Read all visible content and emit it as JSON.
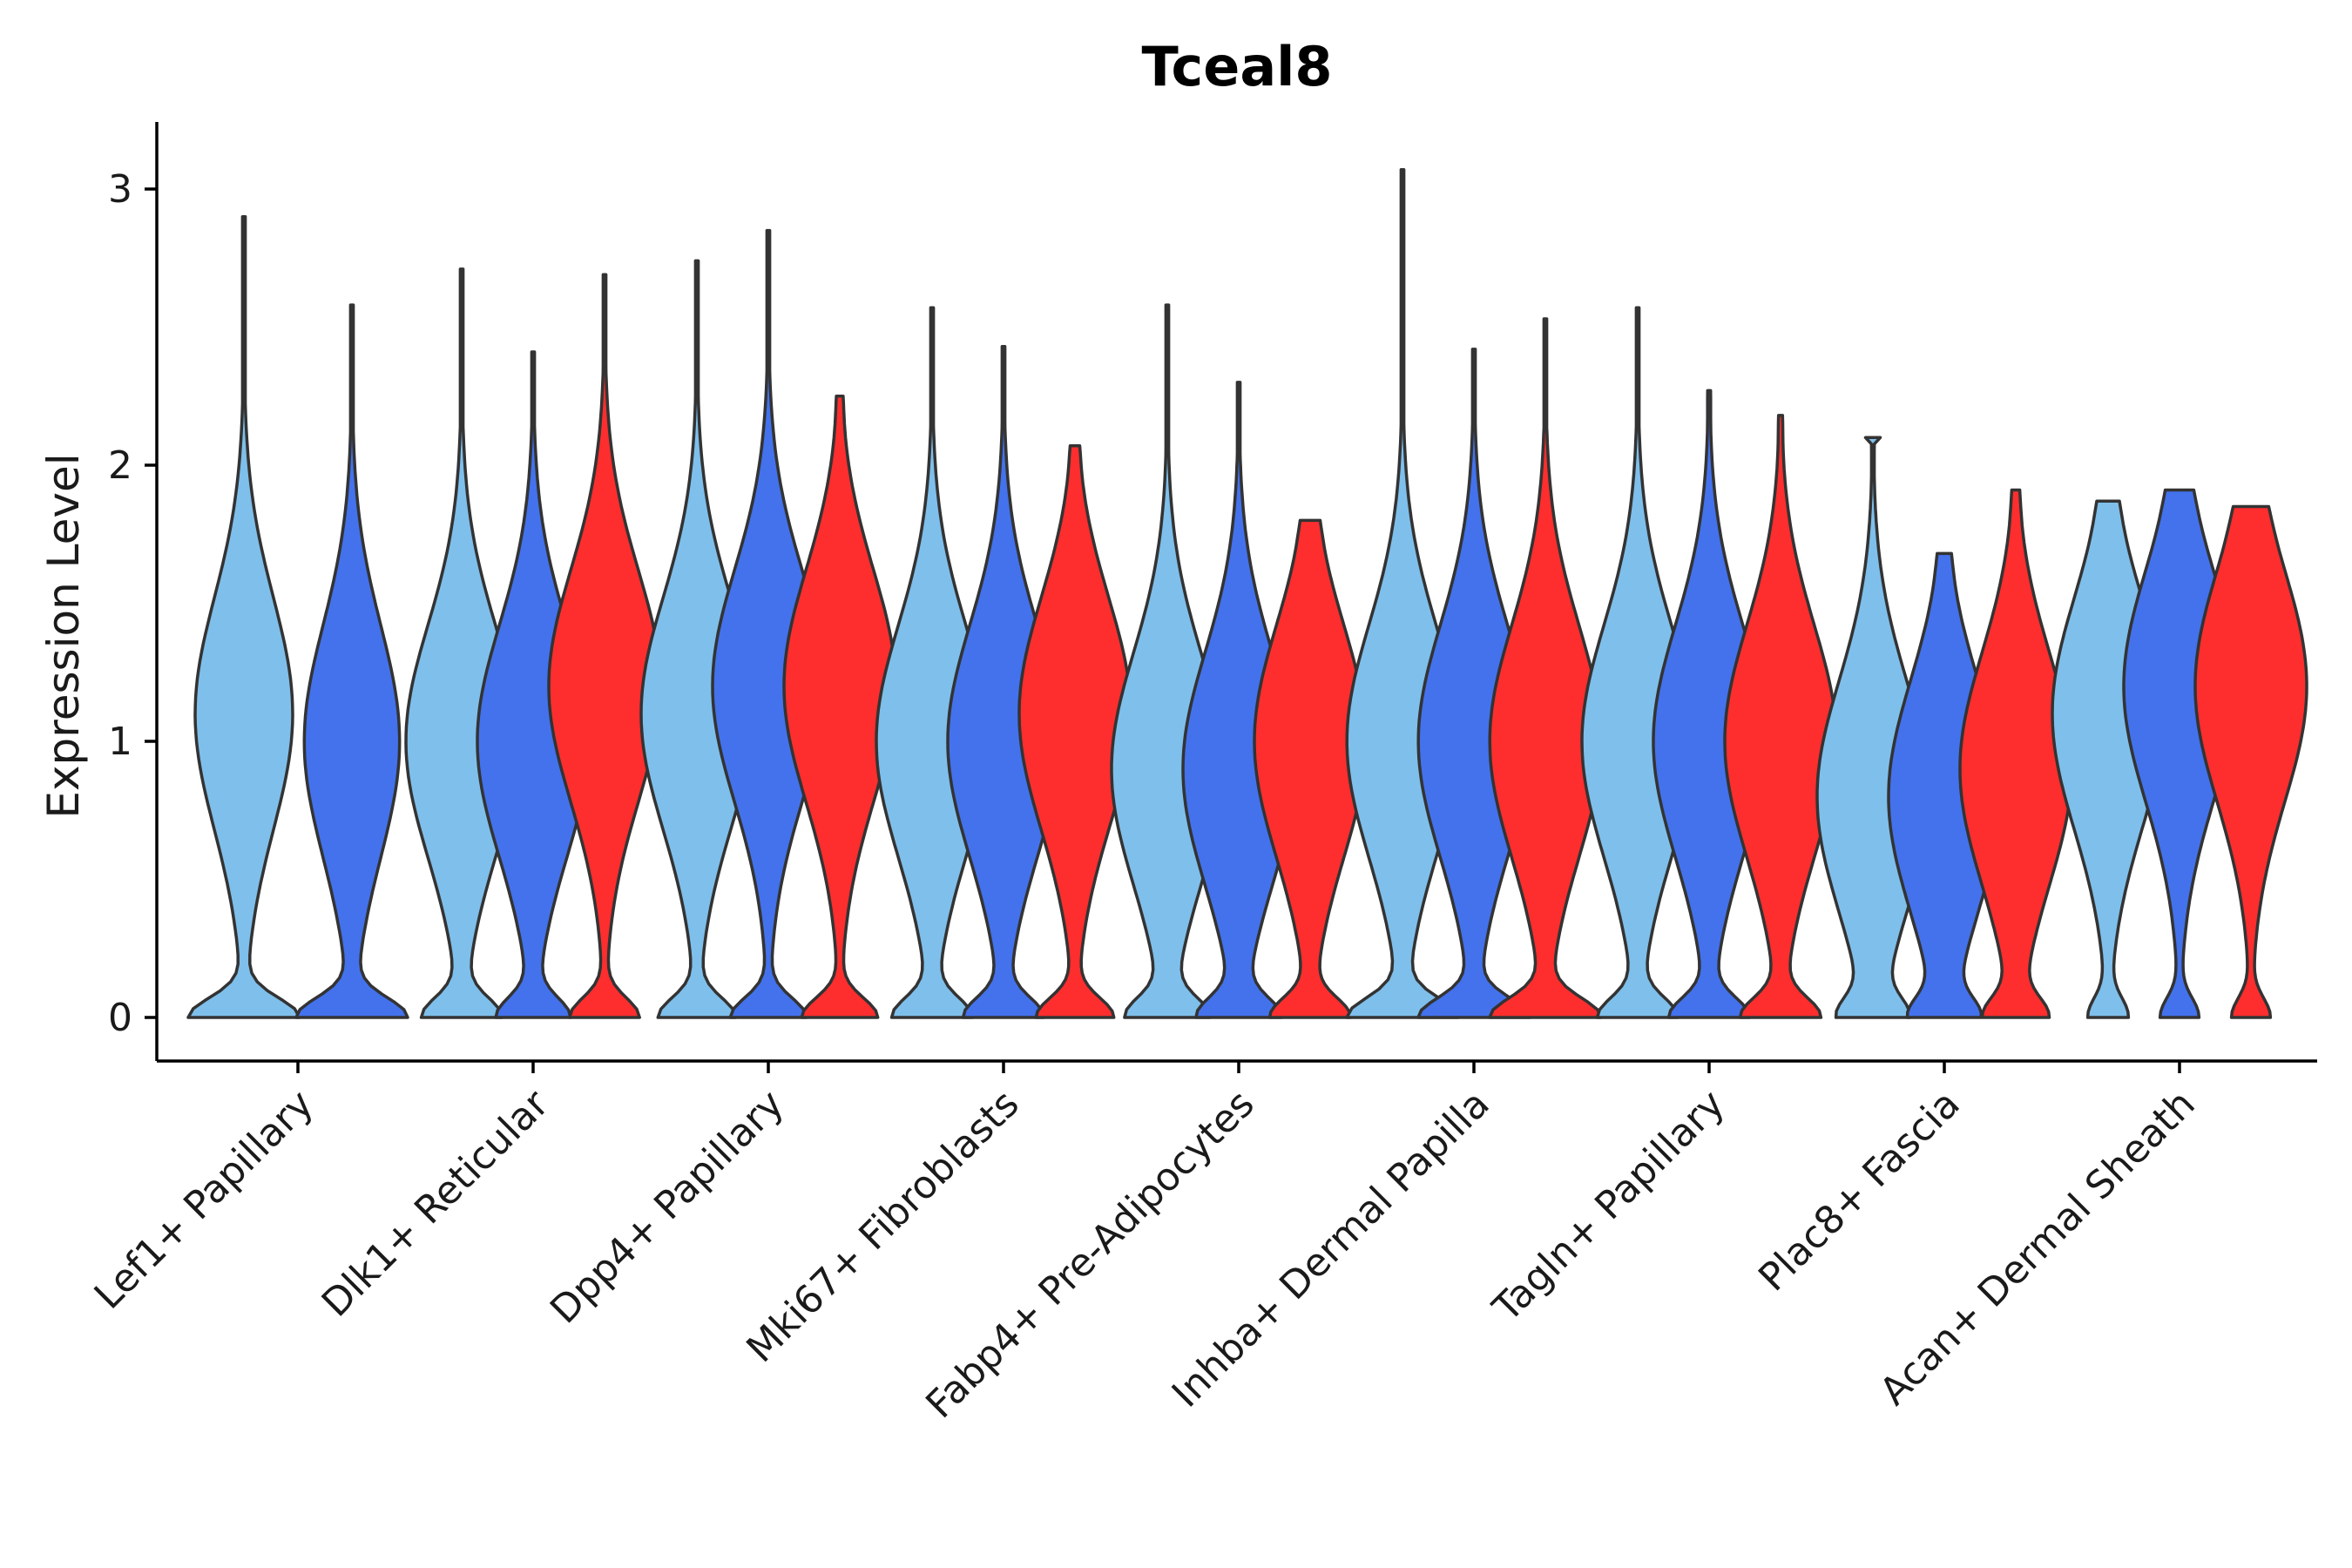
{
  "chart_data": {
    "type": "violin",
    "title": "Tceal8",
    "xlabel": "",
    "ylabel": "Expression Level",
    "ylim": [
      -0.15,
      3.25
    ],
    "yticks": [
      0,
      1,
      2,
      3
    ],
    "legend": "none",
    "grid": false,
    "palette": [
      "#7fbfeb",
      "#4372ec",
      "#ff2e2e"
    ],
    "categories": [
      "Lef1+ Papillary",
      "Dlk1+ Reticular",
      "Dpp4+ Papillary",
      "Mki67+ Fibroblasts",
      "Fabp4+ Pre-Adipocytes",
      "Inhba+ Dermal Papilla",
      "Tagln+ Papillary",
      "Plac8+ Fascia",
      "Acan+ Dermal Sheath"
    ],
    "violins": [
      {
        "category": "Lef1+ Papillary",
        "group": 0,
        "max": 2.9,
        "bulge": 1.0,
        "mode": 1.1,
        "flat_top": false
      },
      {
        "category": "Lef1+ Papillary",
        "group": 1,
        "max": 2.58,
        "bulge": 1.0,
        "mode": 1.0,
        "flat_top": false
      },
      {
        "category": "Dlk1+ Reticular",
        "group": 0,
        "max": 2.71,
        "bulge": 0.6,
        "mode": 1.0,
        "flat_top": false
      },
      {
        "category": "Dlk1+ Reticular",
        "group": 1,
        "max": 2.41,
        "bulge": 0.55,
        "mode": 1.0,
        "flat_top": false
      },
      {
        "category": "Dlk1+ Reticular",
        "group": 2,
        "max": 2.69,
        "bulge": 0.55,
        "mode": 1.2,
        "flat_top": false
      },
      {
        "category": "Dpp4+ Papillary",
        "group": 0,
        "max": 2.74,
        "bulge": 0.6,
        "mode": 1.1,
        "flat_top": false
      },
      {
        "category": "Dpp4+ Papillary",
        "group": 1,
        "max": 2.85,
        "bulge": 0.6,
        "mode": 1.2,
        "flat_top": false
      },
      {
        "category": "Dpp4+ Papillary",
        "group": 2,
        "max": 2.25,
        "bulge": 0.6,
        "mode": 1.2,
        "flat_top": false
      },
      {
        "category": "Mki67+ Fibroblasts",
        "group": 0,
        "max": 2.57,
        "bulge": 0.6,
        "mode": 1.0,
        "flat_top": false
      },
      {
        "category": "Mki67+ Fibroblasts",
        "group": 1,
        "max": 2.43,
        "bulge": 0.6,
        "mode": 1.0,
        "flat_top": false
      },
      {
        "category": "Mki67+ Fibroblasts",
        "group": 2,
        "max": 2.07,
        "bulge": 0.6,
        "mode": 1.1,
        "flat_top": false
      },
      {
        "category": "Fabp4+ Pre-Adipocytes",
        "group": 0,
        "max": 2.58,
        "bulge": 0.6,
        "mode": 0.9,
        "flat_top": false
      },
      {
        "category": "Fabp4+ Pre-Adipocytes",
        "group": 1,
        "max": 2.3,
        "bulge": 0.6,
        "mode": 0.9,
        "flat_top": false
      },
      {
        "category": "Fabp4+ Pre-Adipocytes",
        "group": 2,
        "max": 1.8,
        "bulge": 0.6,
        "mode": 1.0,
        "flat_top": false
      },
      {
        "category": "Inhba+ Dermal Papilla",
        "group": 0,
        "max": 3.07,
        "bulge": 0.85,
        "mode": 1.0,
        "flat_top": false
      },
      {
        "category": "Inhba+ Dermal Papilla",
        "group": 1,
        "max": 2.42,
        "bulge": 0.85,
        "mode": 1.0,
        "flat_top": false
      },
      {
        "category": "Inhba+ Dermal Papilla",
        "group": 2,
        "max": 2.53,
        "bulge": 0.85,
        "mode": 1.0,
        "flat_top": false
      },
      {
        "category": "Tagln+ Papillary",
        "group": 0,
        "max": 2.57,
        "bulge": 0.6,
        "mode": 1.0,
        "flat_top": false
      },
      {
        "category": "Tagln+ Papillary",
        "group": 1,
        "max": 2.27,
        "bulge": 0.6,
        "mode": 1.0,
        "flat_top": false
      },
      {
        "category": "Tagln+ Papillary",
        "group": 2,
        "max": 2.18,
        "bulge": 0.6,
        "mode": 1.0,
        "flat_top": false
      },
      {
        "category": "Plac8+ Fascia",
        "group": 0,
        "max": 2.1,
        "bulge": 0.45,
        "mode": 0.8,
        "flat_top": true
      },
      {
        "category": "Plac8+ Fascia",
        "group": 1,
        "max": 1.68,
        "bulge": 0.45,
        "mode": 0.8,
        "flat_top": false
      },
      {
        "category": "Plac8+ Fascia",
        "group": 2,
        "max": 1.91,
        "bulge": 0.45,
        "mode": 0.9,
        "flat_top": false
      },
      {
        "category": "Acan+ Dermal Sheath",
        "group": 0,
        "max": 1.87,
        "bulge": 0.3,
        "mode": 1.1,
        "flat_top": true
      },
      {
        "category": "Acan+ Dermal Sheath",
        "group": 1,
        "max": 1.91,
        "bulge": 0.3,
        "mode": 1.2,
        "flat_top": true
      },
      {
        "category": "Acan+ Dermal Sheath",
        "group": 2,
        "max": 1.85,
        "bulge": 0.3,
        "mode": 1.2,
        "flat_top": false
      }
    ]
  }
}
